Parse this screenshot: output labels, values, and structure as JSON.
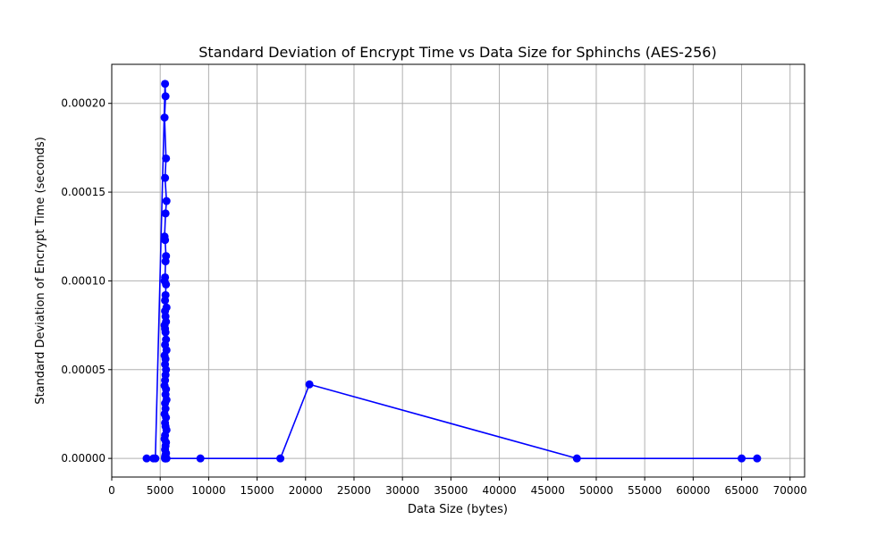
{
  "chart_data": {
    "type": "line",
    "title": "Standard Deviation of Encrypt Time vs Data Size for Sphinchs (AES-256)",
    "xlabel": "Data Size (bytes)",
    "ylabel": "Standard Deviation of Encrypt Time (seconds)",
    "xlim": [
      0,
      71500
    ],
    "ylim": [
      -1.05e-05,
      0.000222
    ],
    "xticks": [
      0,
      5000,
      10000,
      15000,
      20000,
      25000,
      30000,
      35000,
      40000,
      45000,
      50000,
      55000,
      60000,
      65000,
      70000
    ],
    "yticks": [
      0,
      5e-05,
      0.0001,
      0.00015,
      0.0002
    ],
    "xtick_labels": [
      "0",
      "5000",
      "10000",
      "15000",
      "20000",
      "25000",
      "30000",
      "35000",
      "40000",
      "45000",
      "50000",
      "55000",
      "60000",
      "65000",
      "70000"
    ],
    "ytick_labels": [
      "0.00000",
      "0.00005",
      "0.00010",
      "0.00015",
      "0.00020"
    ],
    "grid": true,
    "series": [
      {
        "color": "#0000ff",
        "marker": "circle",
        "x": [
          3600,
          4300,
          4500,
          5500,
          5550,
          5450,
          5600,
          5500,
          5650,
          5550,
          5450,
          5500,
          5600,
          5550,
          5500,
          5450,
          5600,
          5550,
          5500,
          5650,
          5500,
          5550,
          5600,
          5450,
          5500,
          5550,
          5600,
          5500,
          5650,
          5450,
          5550,
          5500,
          5600,
          5550,
          5500,
          5450,
          5600,
          5550,
          5650,
          5500,
          5550,
          5450,
          5600,
          5500,
          5550,
          5650,
          5500,
          5450,
          5600,
          5550,
          5500,
          5600,
          5550,
          5500,
          5650,
          5500,
          5550,
          5600,
          5500,
          5550,
          9150,
          17400,
          20400,
          48000,
          65000,
          66600
        ],
        "y": [
          0,
          0,
          0,
          0.000211,
          0.000204,
          0.000192,
          0.000169,
          0.000158,
          0.000145,
          0.000138,
          0.000125,
          0.000123,
          0.000114,
          0.000111,
          0.000102,
          0.0001,
          9.8e-05,
          9.2e-05,
          8.9e-05,
          8.5e-05,
          8.3e-05,
          8e-05,
          7.7e-05,
          7.5e-05,
          7.3e-05,
          7.1e-05,
          6.7e-05,
          6.4e-05,
          6.1e-05,
          5.8e-05,
          5.6e-05,
          5.3e-05,
          5e-05,
          4.7e-05,
          4.4e-05,
          4.1e-05,
          3.9e-05,
          3.6e-05,
          3.3e-05,
          3.1e-05,
          2.8e-05,
          2.5e-05,
          2.3e-05,
          2e-05,
          1.8e-05,
          1.6e-05,
          1.3e-05,
          1.1e-05,
          9e-06,
          7e-06,
          5e-06,
          3e-06,
          2e-06,
          1e-06,
          0,
          0,
          0,
          0,
          0,
          0,
          0,
          0,
          4.17e-05,
          0,
          0,
          0
        ]
      }
    ]
  }
}
